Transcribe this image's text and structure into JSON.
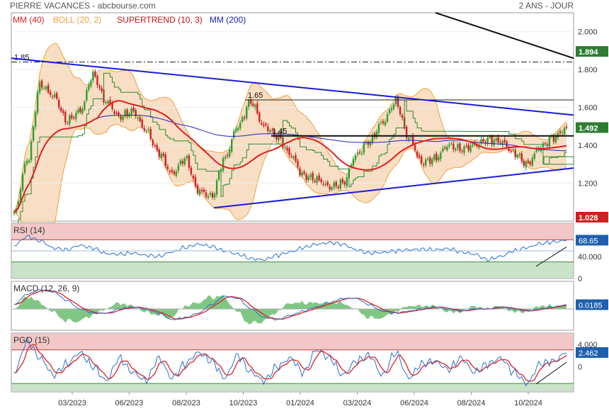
{
  "header": {
    "title": "PIERRE VACANCES - abcbourse.com",
    "period": "2 ANS - JOUR"
  },
  "colors": {
    "price_up": "#2e9e2e",
    "price_down": "#cc2222",
    "mm40": "#e02020",
    "boll": "#f0a040",
    "supertrend": "#e02020",
    "mm200": "#2020c0",
    "trendline": "#1a1adc",
    "osc_line": "#2a6fc9",
    "signal_line": "#dd2222",
    "last_price_badge": "#2e7d32",
    "low_badge": "#cc2222",
    "overbought_zone": "#f3c7c7",
    "oversold_zone": "#c9e3c9"
  },
  "chart_data": [
    {
      "type": "line",
      "name": "price",
      "title": "",
      "legend": [
        {
          "label": "MM (40)",
          "color": "#e02020"
        },
        {
          "label": "BOLL (20, 2)",
          "color": "#f0a040"
        },
        {
          "label": "SUPERTREND (10, 3)",
          "color": "#cc1111"
        },
        {
          "label": "MM (200)",
          "color": "#2020c0"
        }
      ],
      "yticks": [
        "2.000",
        "1.800",
        "1.600",
        "1.400",
        "1.200"
      ],
      "ylim": [
        1.0,
        2.1
      ],
      "badges": {
        "last": "1.492",
        "high": "1.894",
        "low": "1.028"
      },
      "levels": {
        "resistance_1": "1.85",
        "resistance_2": "1.65",
        "support": "1.45"
      },
      "x_labels": [
        "03/2023",
        "06/2023",
        "08/2023",
        "10/2023",
        "01/2024",
        "03/2024",
        "06/2024",
        "08/2024",
        "10/2024"
      ],
      "close_anchors": [
        1.04,
        1.32,
        1.72,
        1.66,
        1.53,
        1.58,
        1.77,
        1.63,
        1.55,
        1.58,
        1.48,
        1.36,
        1.25,
        1.33,
        1.16,
        1.13,
        1.33,
        1.5,
        1.63,
        1.5,
        1.45,
        1.35,
        1.24,
        1.22,
        1.18,
        1.2,
        1.35,
        1.42,
        1.52,
        1.63,
        1.44,
        1.31,
        1.33,
        1.4,
        1.38,
        1.4,
        1.43,
        1.42,
        1.36,
        1.3,
        1.39,
        1.44,
        1.49
      ]
    },
    {
      "type": "line",
      "name": "rsi",
      "legend": [
        {
          "label": "RSI (14)",
          "color": "#2a6fc9"
        }
      ],
      "yticks": [
        "40.000",
        "0"
      ],
      "ylim": [
        0,
        100
      ],
      "badge": "68.65",
      "zones": [
        70,
        30
      ],
      "anchors": [
        60,
        76,
        68,
        55,
        52,
        60,
        55,
        45,
        44,
        46,
        42,
        40,
        48,
        56,
        62,
        58,
        50,
        44,
        36,
        34,
        42,
        48,
        56,
        62,
        65,
        62,
        52,
        46,
        47,
        50,
        52,
        53,
        52,
        54,
        48,
        44,
        34,
        40,
        50,
        56,
        63,
        66,
        69
      ]
    },
    {
      "type": "line",
      "name": "macd",
      "legend": [
        {
          "label": "MACD (12, 26, 9)",
          "color": "#2a6fc9"
        }
      ],
      "badge": "0.0185",
      "anchors": [
        0.02,
        0.07,
        0.09,
        0.08,
        0.04,
        0.0,
        -0.02,
        -0.02,
        0.0,
        0.01,
        0.0,
        -0.02,
        -0.05,
        -0.04,
        -0.02,
        0.02,
        0.06,
        0.05,
        0.0,
        -0.04,
        -0.05,
        -0.03,
        -0.01,
        0.01,
        0.03,
        0.05,
        0.05,
        0.02,
        -0.01,
        -0.02,
        -0.01,
        0.0,
        0.01,
        0.0,
        -0.01,
        0.0,
        0.0,
        0.01,
        0.0,
        -0.01,
        0.0,
        0.01,
        0.02
      ]
    },
    {
      "type": "line",
      "name": "pgo",
      "legend": [
        {
          "label": "PGO (15)",
          "color": "#2a6fc9"
        }
      ],
      "yticks": [
        "4.000",
        "0"
      ],
      "ylim": [
        -4.5,
        6
      ],
      "badge": "2.462",
      "zones": [
        3,
        -3
      ],
      "anchors": [
        -1,
        4.5,
        1.5,
        -1.5,
        0.5,
        2.5,
        0.0,
        -2.5,
        1.5,
        -1.0,
        -2.5,
        1.5,
        -2.0,
        0.5,
        2.5,
        1.0,
        -2.0,
        2.0,
        -1.0,
        -2.5,
        0.0,
        1.5,
        -1.0,
        3.0,
        1.5,
        -1.5,
        1.0,
        2.0,
        -1.5,
        2.5,
        -2.0,
        0.5,
        1.0,
        -0.5,
        1.5,
        -1.0,
        0.5,
        1.5,
        -1.0,
        -3.0,
        0.5,
        1.0,
        2.46
      ]
    }
  ]
}
